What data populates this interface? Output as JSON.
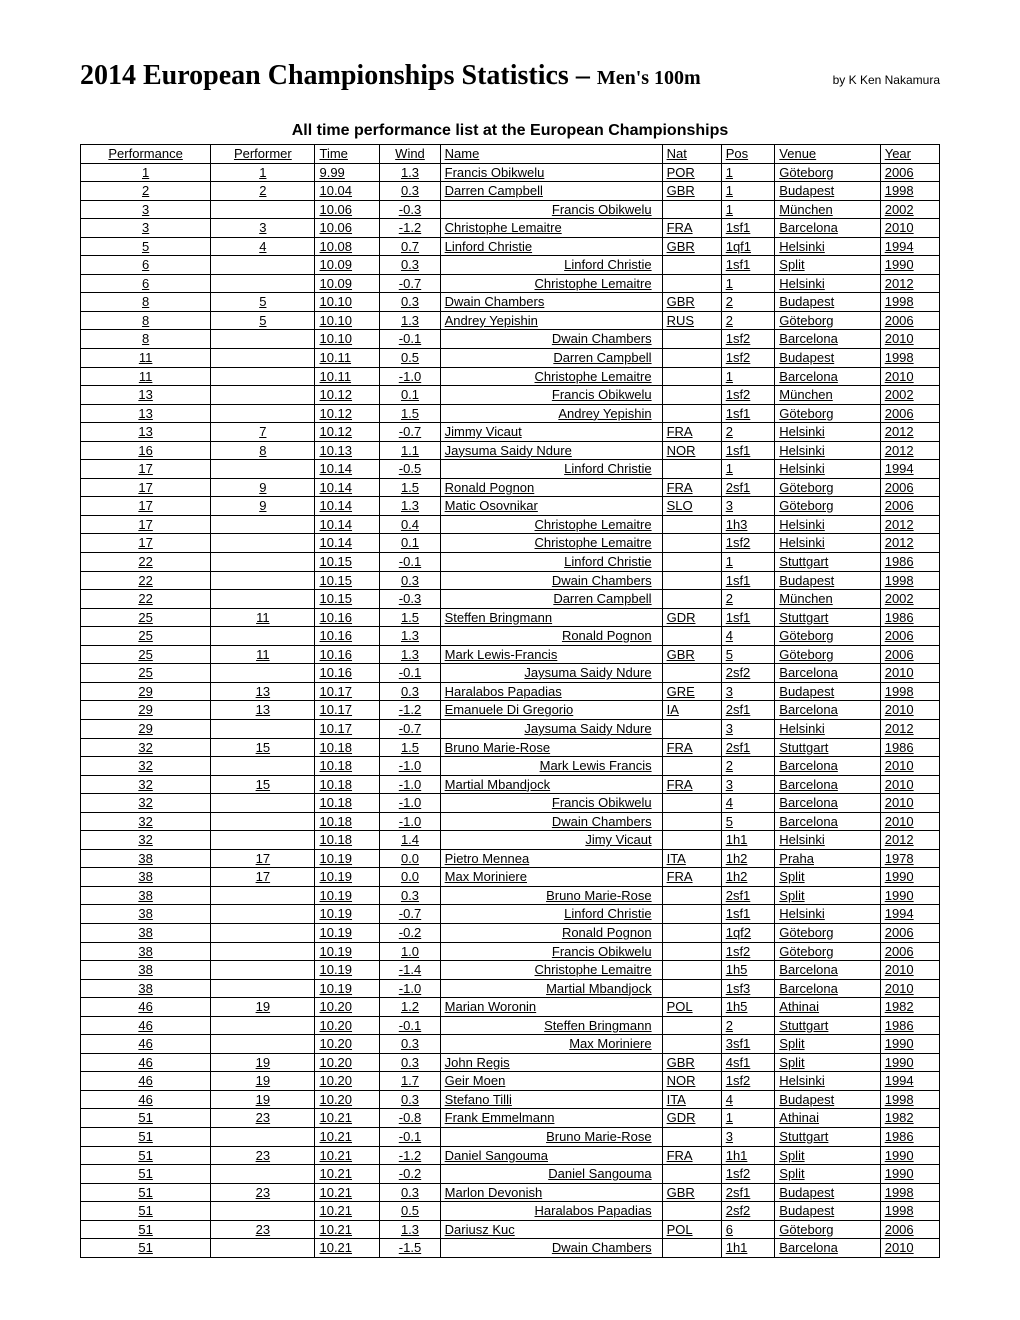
{
  "header": {
    "title_main": "2014 European Championships Statistics – ",
    "title_sub": "Men's 100m",
    "byline": "by K Ken Nakamura"
  },
  "subtitle": "All time performance list at the European Championships",
  "columns": [
    "Performance",
    "Performer",
    "Time",
    "Wind",
    "Name",
    "Nat",
    "Pos",
    "Venue",
    "Year"
  ],
  "rows": [
    {
      "perf": "1",
      "performer": "1",
      "time": "9.99",
      "wind": "1.3",
      "name": "Francis Obikwelu",
      "indent": false,
      "nat": "POR",
      "pos": "1",
      "venue": "Göteborg",
      "year": "2006"
    },
    {
      "perf": "2",
      "performer": "2",
      "time": "10.04",
      "wind": "0.3",
      "name": "Darren Campbell",
      "indent": false,
      "nat": "GBR",
      "pos": "1",
      "venue": "Budapest",
      "year": "1998"
    },
    {
      "perf": "3",
      "performer": "",
      "time": "10.06",
      "wind": "-0.3",
      "name": "Francis Obikwelu",
      "indent": true,
      "nat": "",
      "pos": "1",
      "venue": "München",
      "year": "2002"
    },
    {
      "perf": "3",
      "performer": "3",
      "time": "10.06",
      "wind": "-1.2",
      "name": "Christophe Lemaitre",
      "indent": false,
      "nat": "FRA",
      "pos": "1sf1",
      "venue": "Barcelona",
      "year": "2010"
    },
    {
      "perf": "5",
      "performer": "4",
      "time": "10.08",
      "wind": "0.7",
      "name": "Linford Christie",
      "indent": false,
      "nat": "GBR",
      "pos": "1qf1",
      "venue": "Helsinki",
      "year": "1994"
    },
    {
      "perf": "6",
      "performer": "",
      "time": "10.09",
      "wind": "0.3",
      "name": "Linford Christie",
      "indent": true,
      "nat": "",
      "pos": "1sf1",
      "venue": "Split",
      "year": "1990"
    },
    {
      "perf": "6",
      "performer": "",
      "time": "10.09",
      "wind": "-0.7",
      "name": "Christophe Lemaitre",
      "indent": true,
      "nat": "",
      "pos": "1",
      "venue": "Helsinki",
      "year": "2012"
    },
    {
      "perf": "8",
      "performer": "5",
      "time": "10.10",
      "wind": "0.3",
      "name": "Dwain Chambers",
      "indent": false,
      "nat": "GBR",
      "pos": "2",
      "venue": "Budapest",
      "year": "1998"
    },
    {
      "perf": "8",
      "performer": "5",
      "time": "10.10",
      "wind": "1.3",
      "name": "Andrey Yepishin",
      "indent": false,
      "nat": "RUS",
      "pos": "2",
      "venue": "Göteborg",
      "year": "2006"
    },
    {
      "perf": "8",
      "performer": "",
      "time": "10.10",
      "wind": "-0.1",
      "name": "Dwain Chambers",
      "indent": true,
      "nat": "",
      "pos": "1sf2",
      "venue": "Barcelona",
      "year": "2010"
    },
    {
      "perf": "11",
      "performer": "",
      "time": "10.11",
      "wind": "0.5",
      "name": "Darren Campbell",
      "indent": true,
      "nat": "",
      "pos": "1sf2",
      "venue": "Budapest",
      "year": "1998"
    },
    {
      "perf": "11",
      "performer": "",
      "time": "10.11",
      "wind": "-1.0",
      "name": "Christophe Lemaitre",
      "indent": true,
      "nat": "",
      "pos": "1",
      "venue": "Barcelona",
      "year": "2010"
    },
    {
      "perf": "13",
      "performer": "",
      "time": "10.12",
      "wind": "0.1",
      "name": "Francis Obikwelu",
      "indent": true,
      "nat": "",
      "pos": "1sf2",
      "venue": "München",
      "year": "2002"
    },
    {
      "perf": "13",
      "performer": "",
      "time": "10.12",
      "wind": "1.5",
      "name": "Andrey Yepishin",
      "indent": true,
      "nat": "",
      "pos": "1sf1",
      "venue": "Göteborg",
      "year": "2006"
    },
    {
      "perf": "13",
      "performer": "7",
      "time": "10.12",
      "wind": "-0.7",
      "name": "Jimmy Vicaut",
      "indent": false,
      "nat": "FRA",
      "pos": "2",
      "venue": "Helsinki",
      "year": "2012"
    },
    {
      "perf": "16",
      "performer": "8",
      "time": "10.13",
      "wind": "1.1",
      "name": "Jaysuma Saidy Ndure",
      "indent": false,
      "nat": "NOR",
      "pos": "1sf1",
      "venue": "Helsinki",
      "year": "2012"
    },
    {
      "perf": "17",
      "performer": "",
      "time": "10.14",
      "wind": "-0.5",
      "name": "Linford Christie",
      "indent": true,
      "nat": "",
      "pos": "1",
      "venue": "Helsinki",
      "year": "1994"
    },
    {
      "perf": "17",
      "performer": "9",
      "time": "10.14",
      "wind": "1.5",
      "name": "Ronald Pognon",
      "indent": false,
      "nat": "FRA",
      "pos": "2sf1",
      "venue": "Göteborg",
      "year": "2006"
    },
    {
      "perf": "17",
      "performer": "9",
      "time": "10.14",
      "wind": "1.3",
      "name": "Matic Osovnikar",
      "indent": false,
      "nat": "SLO",
      "pos": "3",
      "venue": "Göteborg",
      "year": "2006"
    },
    {
      "perf": "17",
      "performer": "",
      "time": "10.14",
      "wind": "0.4",
      "name": "Christophe Lemaitre",
      "indent": true,
      "nat": "",
      "pos": "1h3",
      "venue": "Helsinki",
      "year": "2012"
    },
    {
      "perf": "17",
      "performer": "",
      "time": "10.14",
      "wind": "0.1",
      "name": "Christophe Lemaitre",
      "indent": true,
      "nat": "",
      "pos": "1sf2",
      "venue": "Helsinki",
      "year": "2012"
    },
    {
      "perf": "22",
      "performer": "",
      "time": "10.15",
      "wind": "-0.1",
      "name": "Linford Christie",
      "indent": true,
      "nat": "",
      "pos": "1",
      "venue": "Stuttgart",
      "year": "1986"
    },
    {
      "perf": "22",
      "performer": "",
      "time": "10.15",
      "wind": "0.3",
      "name": "Dwain Chambers",
      "indent": true,
      "nat": "",
      "pos": "1sf1",
      "venue": "Budapest",
      "year": "1998"
    },
    {
      "perf": "22",
      "performer": "",
      "time": "10.15",
      "wind": "-0.3",
      "name": "Darren Campbell",
      "indent": true,
      "nat": "",
      "pos": "2",
      "venue": "München",
      "year": "2002"
    },
    {
      "perf": "25",
      "performer": "11",
      "time": "10.16",
      "wind": "1.5",
      "name": "Steffen Bringmann",
      "indent": false,
      "nat": "GDR",
      "pos": "1sf1",
      "venue": "Stuttgart",
      "year": "1986"
    },
    {
      "perf": "25",
      "performer": "",
      "time": "10.16",
      "wind": "1.3",
      "name": "Ronald Pognon",
      "indent": true,
      "nat": "",
      "pos": "4",
      "venue": "Göteborg",
      "year": "2006"
    },
    {
      "perf": "25",
      "performer": "11",
      "time": "10.16",
      "wind": "1.3",
      "name": "Mark Lewis-Francis",
      "indent": false,
      "nat": "GBR",
      "pos": "5",
      "venue": "Göteborg",
      "year": "2006"
    },
    {
      "perf": "25",
      "performer": "",
      "time": "10.16",
      "wind": "-0.1",
      "name": "Jaysuma Saidy Ndure",
      "indent": true,
      "nat": "",
      "pos": "2sf2",
      "venue": "Barcelona",
      "year": "2010"
    },
    {
      "perf": "29",
      "performer": "13",
      "time": "10.17",
      "wind": "0.3",
      "name": "Haralabos Papadias",
      "indent": false,
      "nat": "GRE",
      "pos": "3",
      "venue": "Budapest",
      "year": "1998"
    },
    {
      "perf": "29",
      "performer": "13",
      "time": "10.17",
      "wind": "-1.2",
      "name": "Emanuele Di Gregorio",
      "indent": false,
      "nat": "IA",
      "pos": "2sf1",
      "venue": "Barcelona",
      "year": "2010"
    },
    {
      "perf": "29",
      "performer": "",
      "time": "10.17",
      "wind": "-0.7",
      "name": "Jaysuma Saidy Ndure",
      "indent": true,
      "nat": "",
      "pos": "3",
      "venue": "Helsinki",
      "year": "2012"
    },
    {
      "perf": "32",
      "performer": "15",
      "time": "10.18",
      "wind": "1.5",
      "name": "Bruno Marie-Rose",
      "indent": false,
      "nat": "FRA",
      "pos": "2sf1",
      "venue": "Stuttgart",
      "year": "1986"
    },
    {
      "perf": "32",
      "performer": "",
      "time": "10.18",
      "wind": "-1.0",
      "name": "Mark Lewis Francis",
      "indent": true,
      "nat": "",
      "pos": "2",
      "venue": "Barcelona",
      "year": "2010"
    },
    {
      "perf": "32",
      "performer": "15",
      "time": "10.18",
      "wind": "-1.0",
      "name": "Martial Mbandjock",
      "indent": false,
      "nat": "FRA",
      "pos": "3",
      "venue": "Barcelona",
      "year": "2010"
    },
    {
      "perf": "32",
      "performer": "",
      "time": "10.18",
      "wind": "-1.0",
      "name": "Francis Obikwelu",
      "indent": true,
      "nat": "",
      "pos": "4",
      "venue": "Barcelona",
      "year": "2010"
    },
    {
      "perf": "32",
      "performer": "",
      "time": "10.18",
      "wind": "-1.0",
      "name": "Dwain Chambers",
      "indent": true,
      "nat": "",
      "pos": "5",
      "venue": "Barcelona",
      "year": "2010"
    },
    {
      "perf": "32",
      "performer": "",
      "time": "10.18",
      "wind": "1.4",
      "name": "Jimy Vicaut",
      "indent": true,
      "nat": "",
      "pos": "1h1",
      "venue": "Helsinki",
      "year": "2012"
    },
    {
      "perf": "38",
      "performer": "17",
      "time": "10.19",
      "wind": "0.0",
      "name": "Pietro Mennea",
      "indent": false,
      "nat": "ITA",
      "pos": "1h2",
      "venue": "Praha",
      "year": "1978"
    },
    {
      "perf": "38",
      "performer": "17",
      "time": "10.19",
      "wind": "0.0",
      "name": "Max Moriniere",
      "indent": false,
      "nat": "FRA",
      "pos": "1h2",
      "venue": "Split",
      "year": "1990"
    },
    {
      "perf": "38",
      "performer": "",
      "time": "10.19",
      "wind": "0.3",
      "name": "Bruno Marie-Rose",
      "indent": true,
      "nat": "",
      "pos": "2sf1",
      "venue": "Split",
      "year": "1990"
    },
    {
      "perf": "38",
      "performer": "",
      "time": "10.19",
      "wind": "-0.7",
      "name": "Linford Christie",
      "indent": true,
      "nat": "",
      "pos": "1sf1",
      "venue": "Helsinki",
      "year": "1994"
    },
    {
      "perf": "38",
      "performer": "",
      "time": "10.19",
      "wind": "-0.2",
      "name": "Ronald Pognon",
      "indent": true,
      "nat": "",
      "pos": "1qf2",
      "venue": "Göteborg",
      "year": "2006"
    },
    {
      "perf": "38",
      "performer": "",
      "time": "10.19",
      "wind": "1.0",
      "name": "Francis Obikwelu",
      "indent": true,
      "nat": "",
      "pos": "1sf2",
      "venue": "Göteborg",
      "year": "2006"
    },
    {
      "perf": "38",
      "performer": "",
      "time": "10.19",
      "wind": "-1.4",
      "name": "Christophe Lemaitre",
      "indent": true,
      "nat": "",
      "pos": "1h5",
      "venue": "Barcelona",
      "year": "2010"
    },
    {
      "perf": "38",
      "performer": "",
      "time": "10.19",
      "wind": "-1.0",
      "name": "Martial Mbandjock",
      "indent": true,
      "nat": "",
      "pos": "1sf3",
      "venue": "Barcelona",
      "year": "2010"
    },
    {
      "perf": "46",
      "performer": "19",
      "time": "10.20",
      "wind": "1.2",
      "name": "Marian Woronin",
      "indent": false,
      "nat": "POL",
      "pos": "1h5",
      "venue": "Athinai",
      "year": "1982"
    },
    {
      "perf": "46",
      "performer": "",
      "time": "10.20",
      "wind": "-0.1",
      "name": "Steffen Bringmann",
      "indent": true,
      "nat": "",
      "pos": "2",
      "venue": "Stuttgart",
      "year": "1986"
    },
    {
      "perf": "46",
      "performer": "",
      "time": "10.20",
      "wind": "0.3",
      "name": "Max Moriniere",
      "indent": true,
      "nat": "",
      "pos": "3sf1",
      "venue": "Split",
      "year": "1990"
    },
    {
      "perf": "46",
      "performer": "19",
      "time": "10.20",
      "wind": "0.3",
      "name": "John Regis",
      "indent": false,
      "nat": "GBR",
      "pos": "4sf1",
      "venue": "Split",
      "year": "1990"
    },
    {
      "perf": "46",
      "performer": "19",
      "time": "10.20",
      "wind": "1.7",
      "name": "Geir Moen",
      "indent": false,
      "nat": "NOR",
      "pos": "1sf2",
      "venue": "Helsinki",
      "year": "1994"
    },
    {
      "perf": "46",
      "performer": "19",
      "time": "10.20",
      "wind": "0.3",
      "name": "Stefano Tilli",
      "indent": false,
      "nat": "ITA",
      "pos": "4",
      "venue": "Budapest",
      "year": "1998"
    },
    {
      "perf": "51",
      "performer": "23",
      "time": "10.21",
      "wind": "-0.8",
      "name": "Frank Emmelmann",
      "indent": false,
      "nat": "GDR",
      "pos": "1",
      "venue": "Athinai",
      "year": "1982"
    },
    {
      "perf": "51",
      "performer": "",
      "time": "10.21",
      "wind": "-0.1",
      "name": "Bruno Marie-Rose",
      "indent": true,
      "nat": "",
      "pos": "3",
      "venue": "Stuttgart",
      "year": "1986"
    },
    {
      "perf": "51",
      "performer": "23",
      "time": "10.21",
      "wind": "-1.2",
      "name": "Daniel Sangouma",
      "indent": false,
      "nat": "FRA",
      "pos": "1h1",
      "venue": "Split",
      "year": "1990"
    },
    {
      "perf": "51",
      "performer": "",
      "time": "10.21",
      "wind": "-0.2",
      "name": "Daniel Sangouma",
      "indent": true,
      "nat": "",
      "pos": "1sf2",
      "venue": "Split",
      "year": "1990"
    },
    {
      "perf": "51",
      "performer": "23",
      "time": "10.21",
      "wind": "0.3",
      "name": "Marlon Devonish",
      "indent": false,
      "nat": "GBR",
      "pos": "2sf1",
      "venue": "Budapest",
      "year": "1998"
    },
    {
      "perf": "51",
      "performer": "",
      "time": "10.21",
      "wind": "0.5",
      "name": "Haralabos Papadias",
      "indent": true,
      "nat": "",
      "pos": "2sf2",
      "venue": "Budapest",
      "year": "1998"
    },
    {
      "perf": "51",
      "performer": "23",
      "time": "10.21",
      "wind": "1.3",
      "name": "Dariusz Kuc",
      "indent": false,
      "nat": "POL",
      "pos": "6",
      "venue": "Göteborg",
      "year": "2006"
    },
    {
      "perf": "51",
      "performer": "",
      "time": "10.21",
      "wind": "-1.5",
      "name": "Dwain Chambers",
      "indent": true,
      "nat": "",
      "pos": "1h1",
      "venue": "Barcelona",
      "year": "2010"
    }
  ]
}
